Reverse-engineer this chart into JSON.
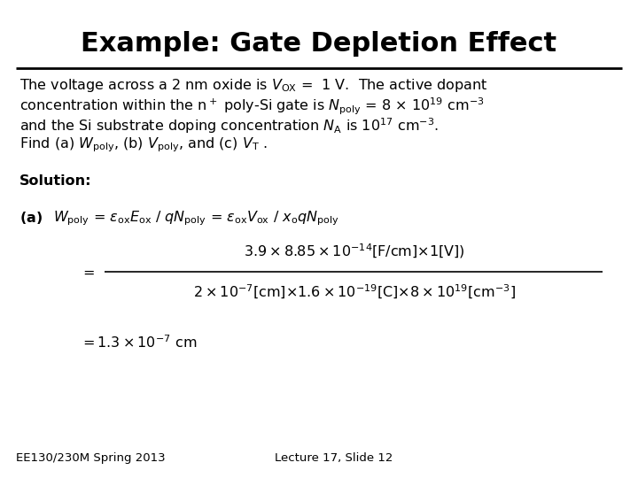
{
  "title": "Example: Gate Depletion Effect",
  "bg_color": "#ffffff",
  "text_color": "#000000",
  "title_fontsize": 22,
  "body_fontsize": 11.5,
  "footer_fontsize": 9.5,
  "footer_left": "EE130/230M Spring 2013",
  "footer_right": "Lecture 17, Slide 12",
  "line1": "The voltage across a 2 nm oxide is $V_{\\mathrm{OX}}$ =  1 V.  The active dopant",
  "line2": "concentration within the n$^+$ poly-Si gate is $N_{\\mathrm{poly}}$ = 8 $\\times$ 10$^{19}$ cm$^{-3}$",
  "line3": "and the Si substrate doping concentration $N_{\\mathrm{A}}$ is 10$^{17}$ cm$^{-3}$.",
  "line4": "Find (a) $W_{\\mathrm{poly}}$, (b) $V_{\\mathrm{poly}}$, and (c) $V_{\\mathrm{T}}$ .",
  "solution_label": "Solution:",
  "eq_a_label": "(a)",
  "eq_a_formula": "$W_{\\mathrm{poly}}$ = $\\varepsilon_{\\mathrm{ox}}E_{\\mathrm{ox}}$ / $qN_{\\mathrm{poly}}$ = $\\varepsilon_{\\mathrm{ox}}V_{\\mathrm{ox}}$ / $x_{\\mathrm{o}}qN_{\\mathrm{poly}}$",
  "frac_numerator": "$3.9\\times8.85\\times10^{-14}$[F/cm]$\\times$1[V])",
  "frac_denominator": "$2\\times10^{-7}$[cm]$\\times1.6\\times10^{-19}$[C]$\\times8\\times10^{19}$[cm$^{-3}$]",
  "result": "$=1.3\\times10^{-7}$ cm"
}
